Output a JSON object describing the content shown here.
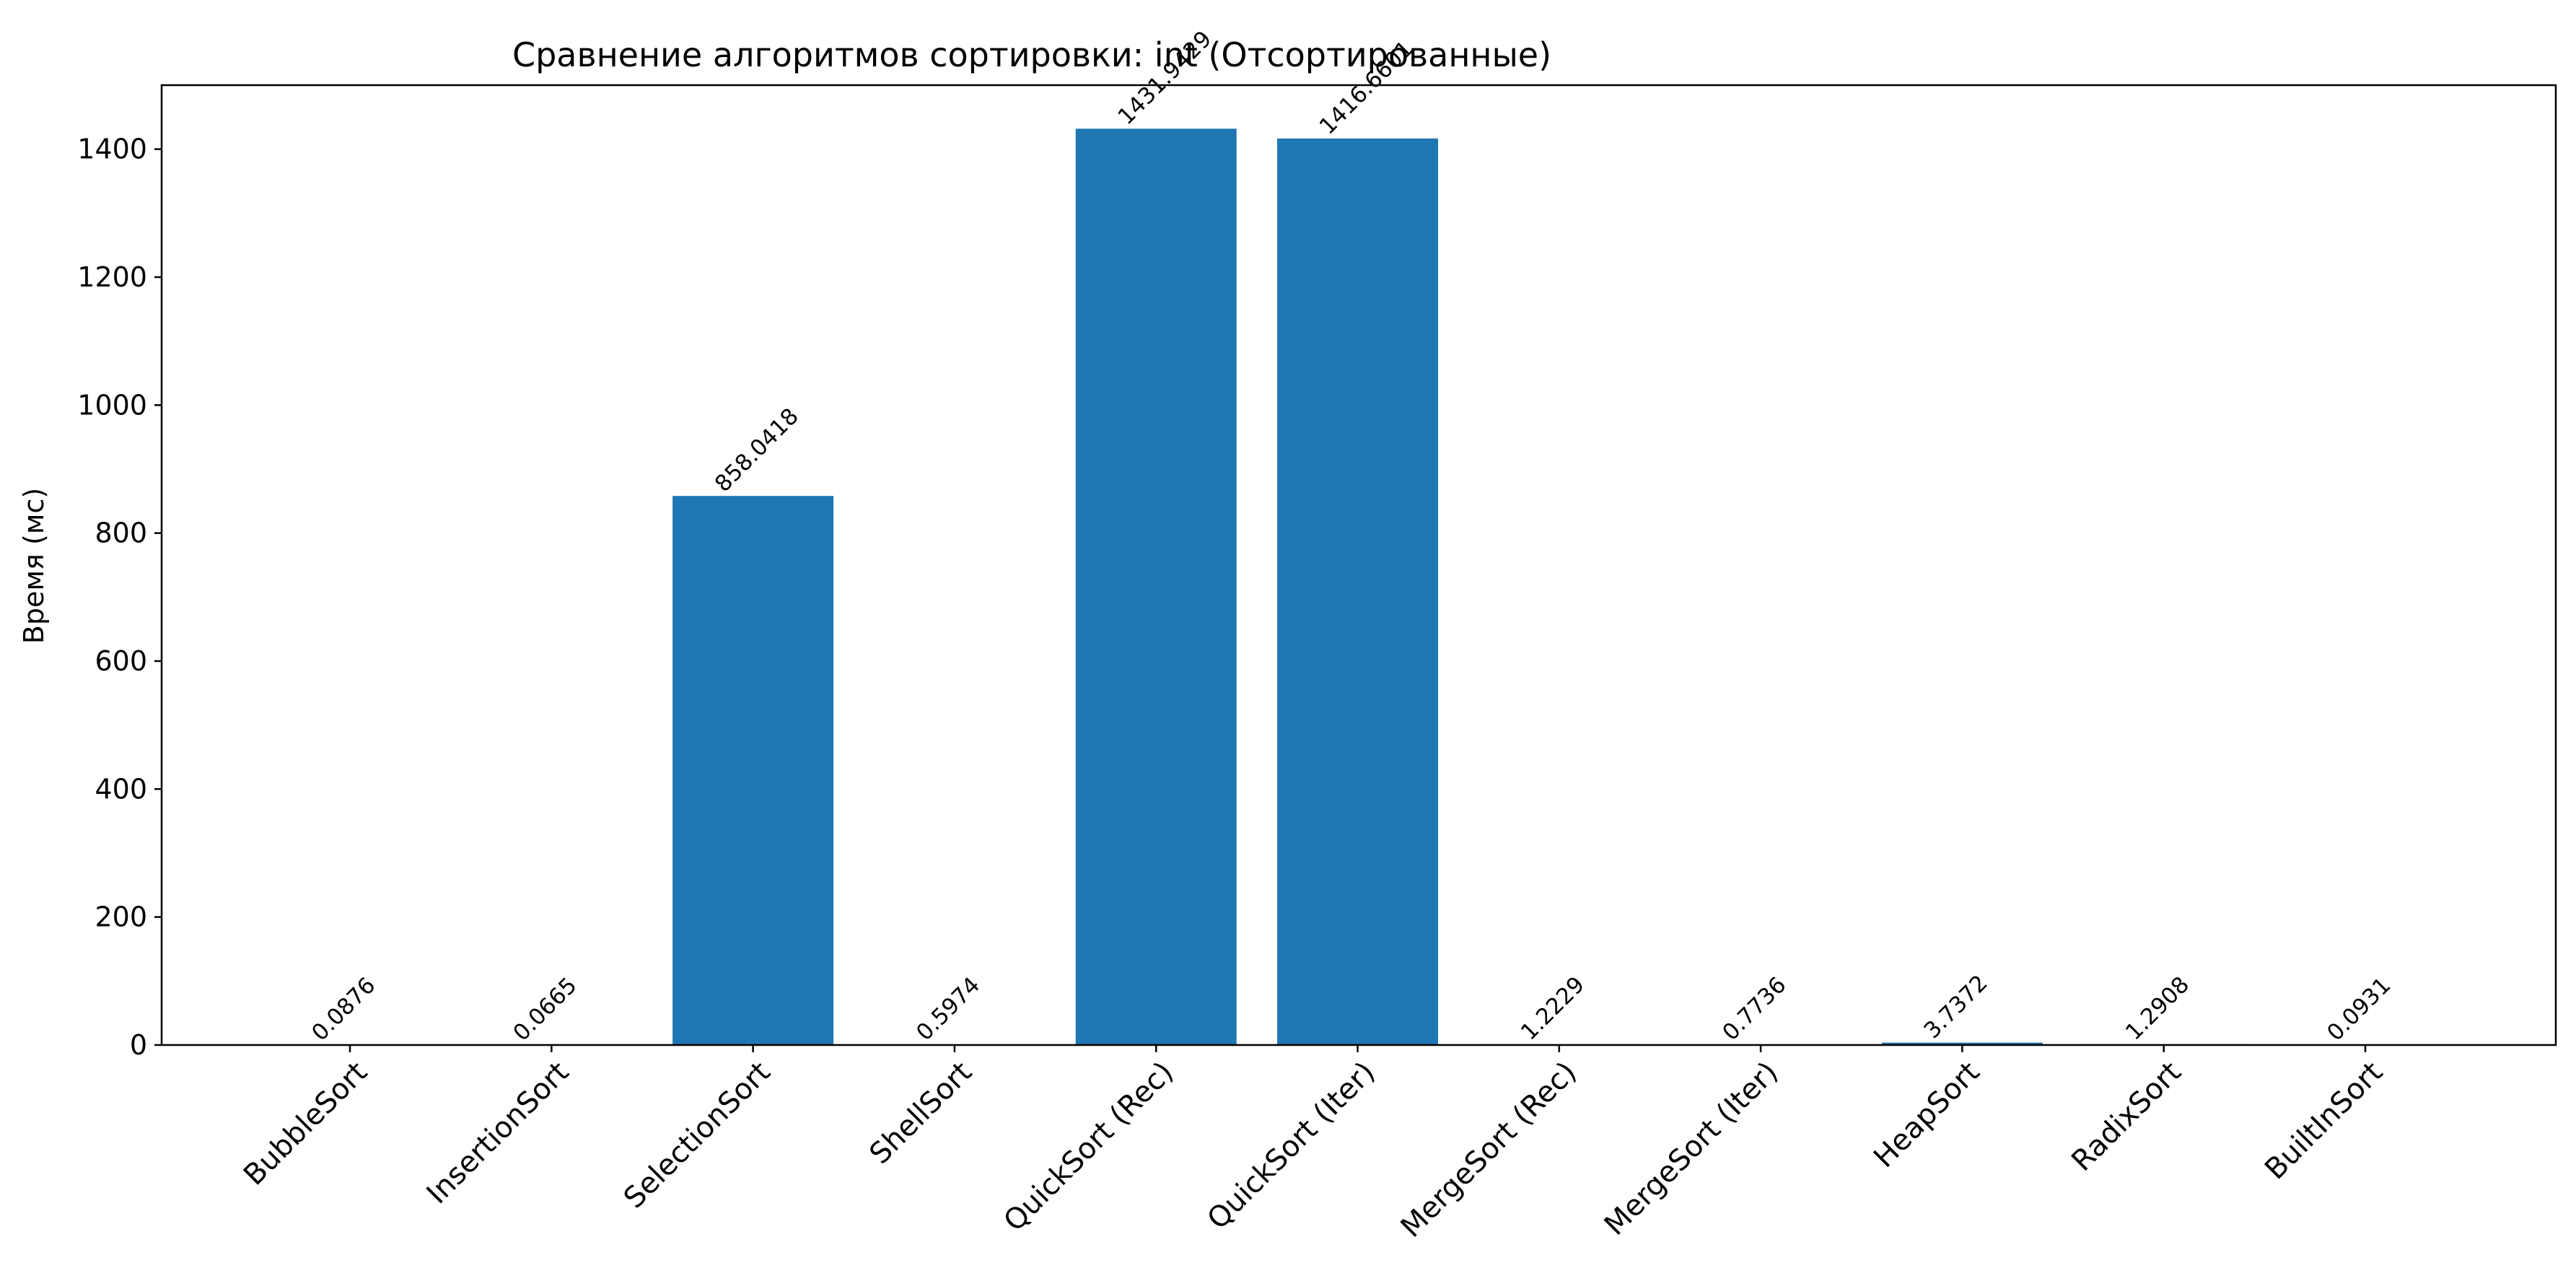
{
  "chart_data": {
    "type": "bar",
    "title": "Сравнение алгоритмов сортировки: int (Отсортированные)",
    "xlabel": "",
    "ylabel": "Время (мс)",
    "ylim": [
      0,
      1500
    ],
    "yticks": [
      0,
      200,
      400,
      600,
      800,
      1000,
      1200,
      1400
    ],
    "grid": false,
    "categories": [
      "BubbleSort",
      "InsertionSort",
      "SelectionSort",
      "ShellSort",
      "QuickSort (Rec)",
      "QuickSort (Iter)",
      "MergeSort (Rec)",
      "MergeSort (Iter)",
      "HeapSort",
      "RadixSort",
      "BuiltInSort"
    ],
    "values": [
      0.0876,
      0.0665,
      858.0418,
      0.5974,
      1431.9429,
      1416.6601,
      1.2229,
      0.7736,
      3.7372,
      1.2908,
      0.0931
    ],
    "value_labels": [
      "0.0876",
      "0.0665",
      "858.0418",
      "0.5974",
      "1431.9429",
      "1416.6601",
      "1.2229",
      "0.7736",
      "3.7372",
      "1.2908",
      "0.0931"
    ],
    "bar_color": "#1f77b4"
  }
}
